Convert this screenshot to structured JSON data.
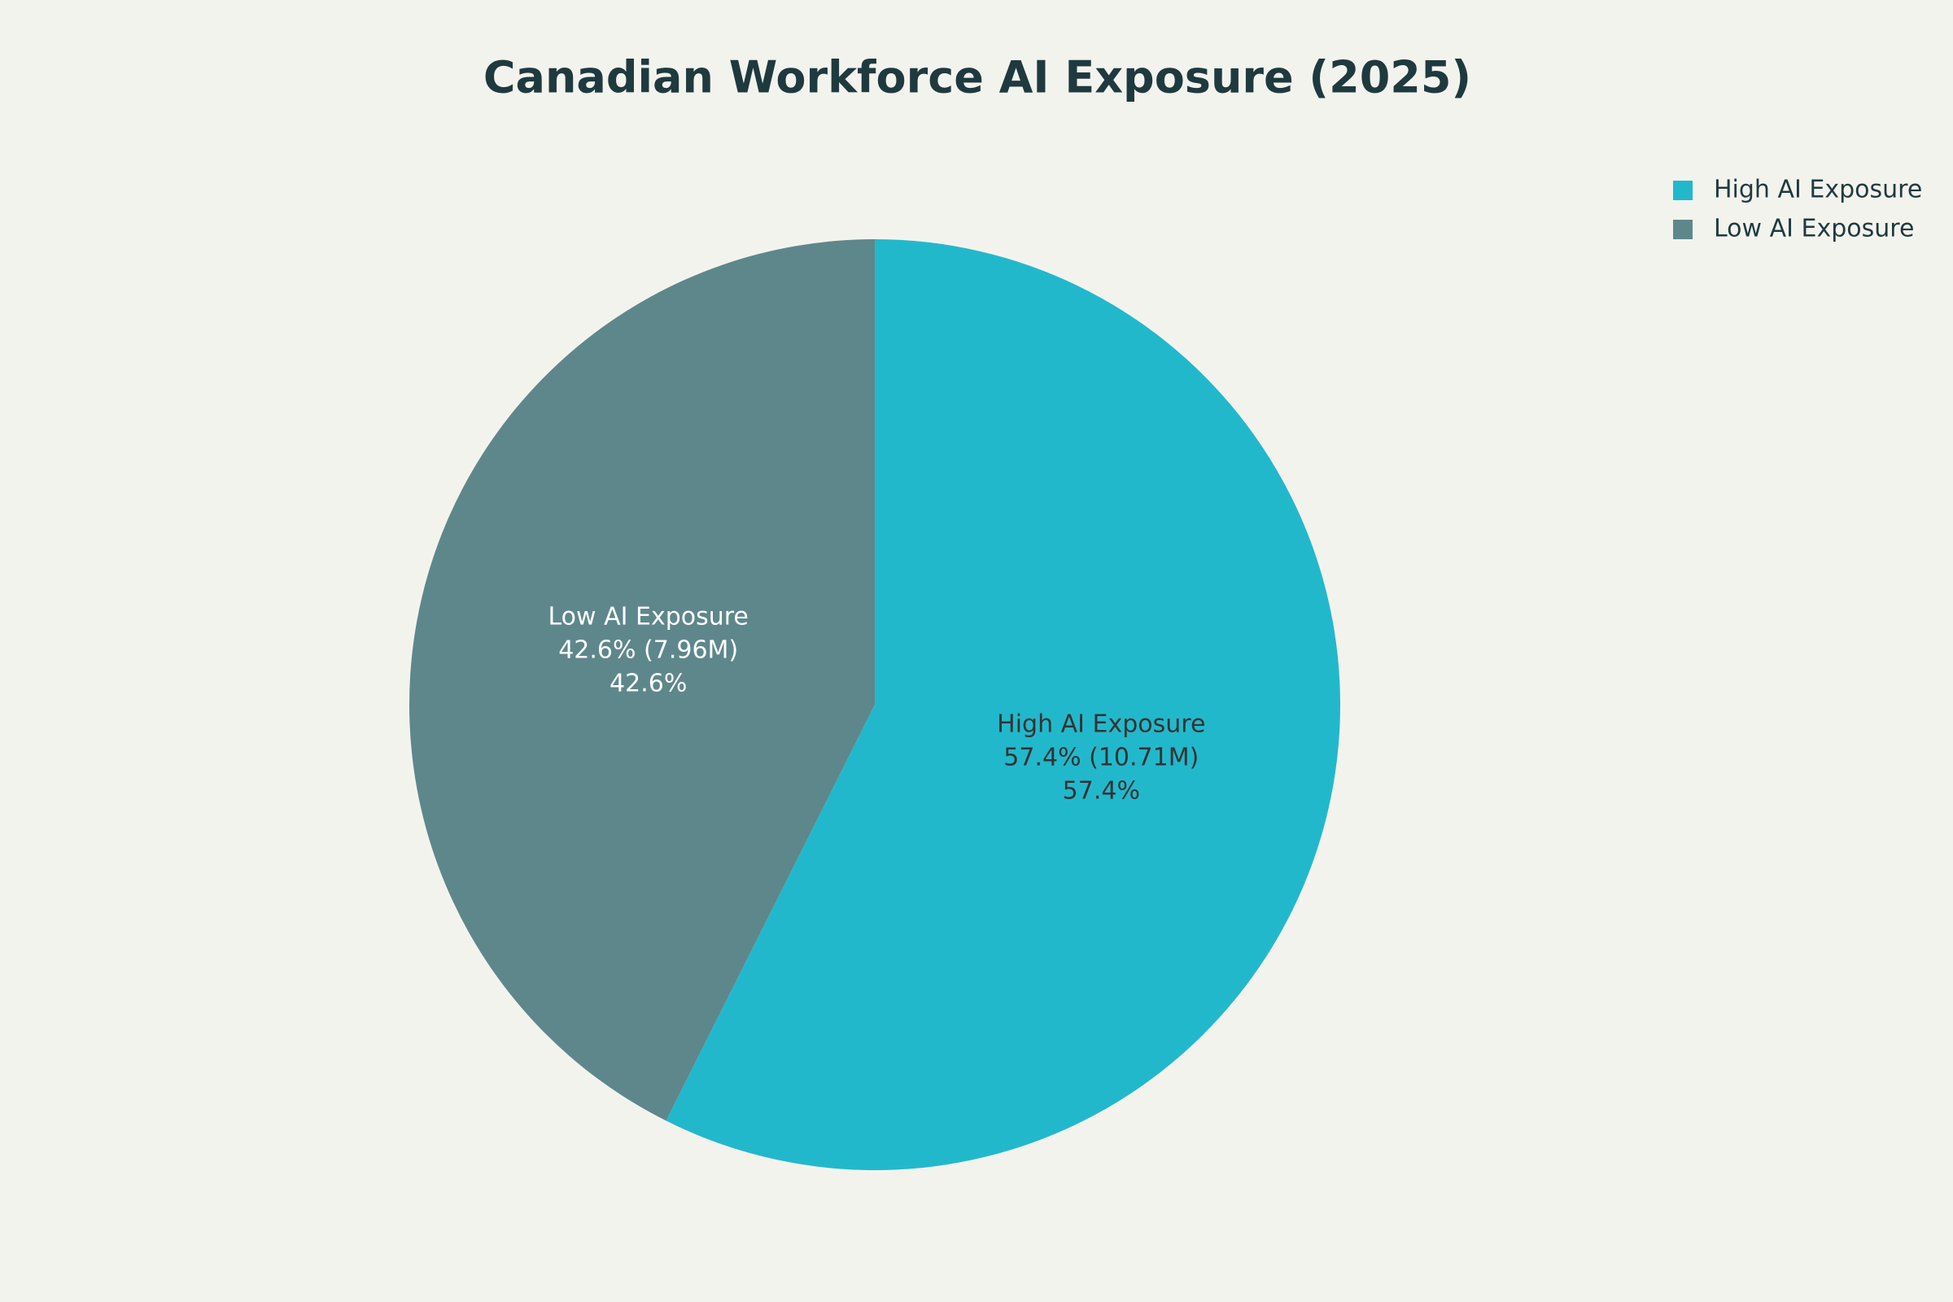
{
  "chart_data": {
    "type": "pie",
    "title": "Canadian Workforce AI Exposure (2025)",
    "categories": [
      "High AI Exposure",
      "Low AI Exposure"
    ],
    "values": [
      57.4,
      42.6
    ],
    "value_labels": [
      "57.4% (10.71M)",
      "42.6% (7.96M)"
    ],
    "percent_labels": [
      "57.4%",
      "42.6%"
    ],
    "colors": [
      "#22b8cc",
      "#5e878c"
    ],
    "label_colors": [
      "#333333",
      "#ffffff"
    ],
    "legend": "top-right"
  }
}
